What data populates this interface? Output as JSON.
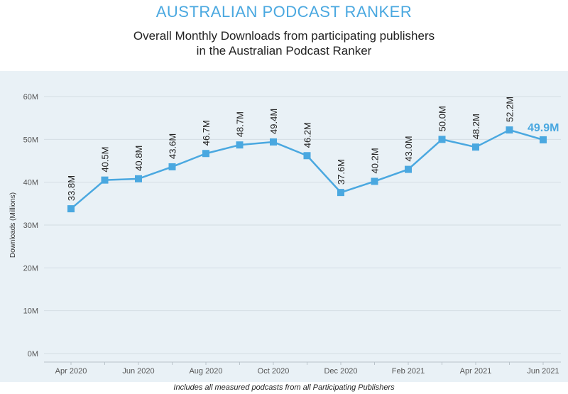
{
  "header": {
    "brand_title": "AUSTRALIAN PODCAST RANKER",
    "subtitle_line1": "Overall Monthly Downloads from participating publishers",
    "subtitle_line2": "in the Australian Podcast Ranker"
  },
  "footnote": "Includes all measured podcasts from all Participating Publishers",
  "colors": {
    "accent": "#4aa8e0",
    "panel_background": "#e9f1f6",
    "gridline": "#d4dde3"
  },
  "chart_data": {
    "type": "line",
    "title": "Overall Monthly Downloads from participating publishers in the Australian Podcast Ranker",
    "ylabel": "Downloads (Millions)",
    "xlabel": "",
    "ylim": [
      0,
      60
    ],
    "yticks": [
      0,
      10,
      20,
      30,
      40,
      50,
      60
    ],
    "ytick_labels": [
      "0M",
      "10M",
      "20M",
      "30M",
      "40M",
      "50M",
      "60M"
    ],
    "grid": true,
    "x": [
      "Apr 2020",
      "May 2020",
      "Jun 2020",
      "Jul 2020",
      "Aug 2020",
      "Sep 2020",
      "Oct 2020",
      "Nov 2020",
      "Dec 2020",
      "Jan 2021",
      "Feb 2021",
      "Mar 2021",
      "Apr 2021",
      "May 2021",
      "Jun 2021"
    ],
    "xtick_labels": [
      "Apr 2020",
      "",
      "Jun 2020",
      "",
      "Aug 2020",
      "",
      "Oct 2020",
      "",
      "Dec 2020",
      "",
      "Feb 2021",
      "",
      "Apr 2021",
      "",
      "Jun 2021"
    ],
    "series": [
      {
        "values": [
          33.8,
          40.5,
          40.8,
          43.6,
          46.7,
          48.7,
          49.4,
          46.2,
          37.6,
          40.2,
          43.0,
          50.0,
          48.2,
          52.2,
          49.9
        ],
        "labels": [
          "33.8M",
          "40.5M",
          "40.8M",
          "43.6M",
          "46.7M",
          "48.7M",
          "49.4M",
          "46.2M",
          "37.6M",
          "40.2M",
          "43.0M",
          "50.0M",
          "48.2M",
          "52.2M",
          "49.9M"
        ],
        "color": "#4aa8e0"
      }
    ]
  }
}
